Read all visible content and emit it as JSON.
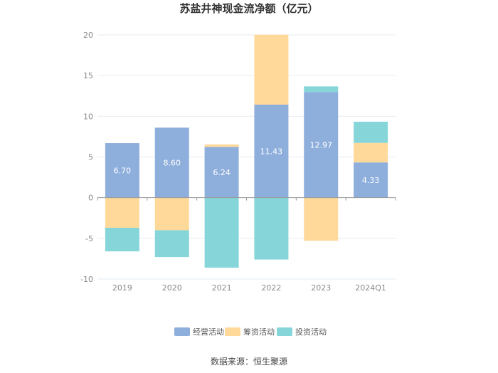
{
  "title": "苏盐井神现金流净额（亿元）",
  "source": "数据来源：恒生聚源",
  "colors": {
    "operating": "#8eaedc",
    "financing": "#ffd99a",
    "investing": "#86d6d9",
    "grid": "#e6ecf2",
    "zero_axis": "#999999"
  },
  "chart_data": {
    "type": "bar",
    "stacked": true,
    "categories": [
      "2019",
      "2020",
      "2021",
      "2022",
      "2023",
      "2024Q1"
    ],
    "ylim": [
      -10,
      20
    ],
    "yticks": [
      -10,
      -5,
      0,
      5,
      10,
      15,
      20
    ],
    "series": [
      {
        "name": "经营活动",
        "key": "operating",
        "values": [
          6.7,
          8.6,
          6.24,
          11.43,
          12.97,
          4.33
        ],
        "labels": [
          "6.70",
          "8.60",
          "6.24",
          "11.43",
          "12.97",
          "4.33"
        ]
      },
      {
        "name": "筹资活动",
        "key": "financing",
        "values": [
          -3.7,
          -4.0,
          0.3,
          8.6,
          -5.3,
          2.4
        ]
      },
      {
        "name": "投资活动",
        "key": "investing",
        "values": [
          -2.9,
          -3.3,
          -8.6,
          -7.6,
          0.7,
          2.6
        ]
      }
    ],
    "legend_position": "bottom"
  }
}
